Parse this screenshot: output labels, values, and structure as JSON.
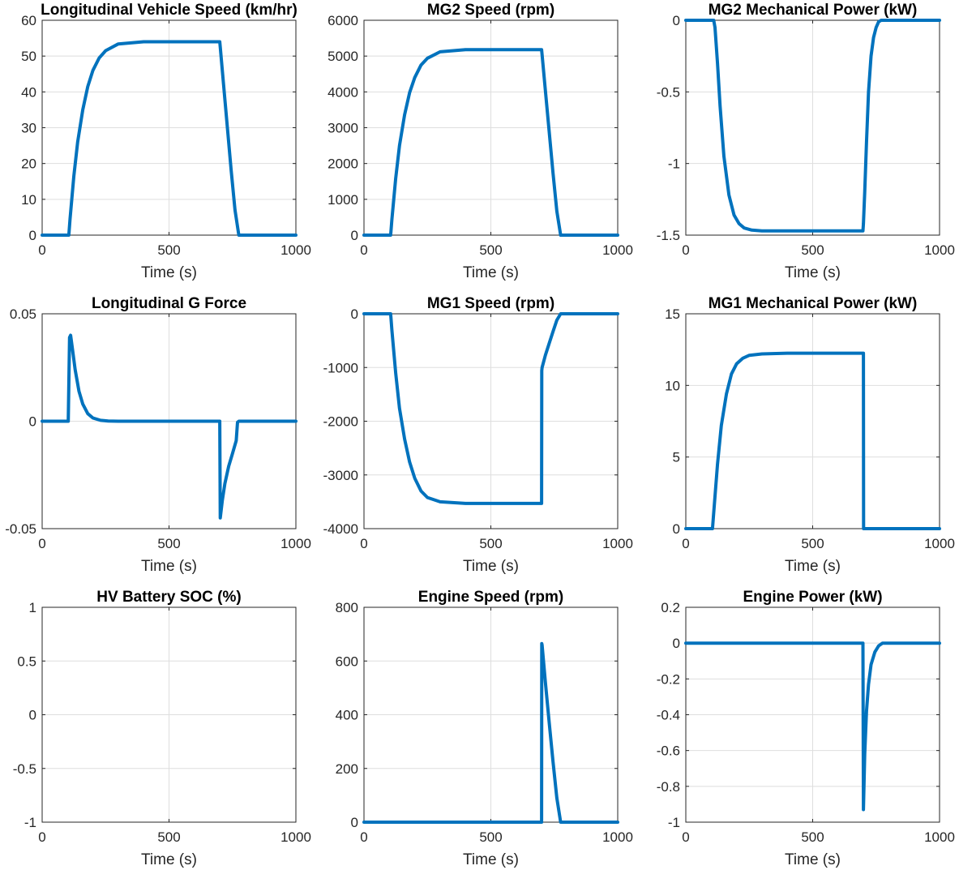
{
  "colors": {
    "series": "#0072BD",
    "grid": "#dedede",
    "axis": "#262626"
  },
  "chart_data": [
    {
      "type": "line",
      "title": "Longitudinal Vehicle Speed (km/hr)",
      "xlabel": "Time (s)",
      "ylabel": "",
      "xlim": [
        0,
        1000
      ],
      "ylim": [
        0,
        60
      ],
      "xticks": [
        0,
        500,
        1000
      ],
      "xtick_labels": [
        "0",
        "500",
        "1000"
      ],
      "yticks": [
        0,
        10,
        20,
        30,
        40,
        50,
        60
      ],
      "ytick_labels": [
        "0",
        "10",
        "20",
        "30",
        "40",
        "50",
        "60"
      ],
      "grid": true,
      "series": [
        {
          "x": [
            0,
            105,
            110,
            125,
            140,
            160,
            180,
            200,
            225,
            250,
            300,
            400,
            500,
            600,
            700,
            702,
            715,
            730,
            745,
            760,
            775,
            1000
          ],
          "y": [
            0,
            0,
            4.5,
            16.5,
            26,
            35,
            41.5,
            46,
            49.5,
            51.5,
            53.4,
            54,
            54,
            54,
            54,
            52.5,
            42,
            30,
            18,
            7,
            0,
            0
          ]
        }
      ]
    },
    {
      "type": "line",
      "title": "MG2 Speed (rpm)",
      "xlabel": "Time (s)",
      "ylabel": "",
      "xlim": [
        0,
        1000
      ],
      "ylim": [
        0,
        6000
      ],
      "xticks": [
        0,
        500,
        1000
      ],
      "xtick_labels": [
        "0",
        "500",
        "1000"
      ],
      "yticks": [
        0,
        1000,
        2000,
        3000,
        4000,
        5000,
        6000
      ],
      "ytick_labels": [
        "0",
        "1000",
        "2000",
        "3000",
        "4000",
        "5000",
        "6000"
      ],
      "grid": true,
      "series": [
        {
          "x": [
            0,
            105,
            110,
            125,
            140,
            160,
            180,
            200,
            225,
            250,
            300,
            400,
            500,
            600,
            700,
            702,
            715,
            730,
            745,
            760,
            775,
            1000
          ],
          "y": [
            0,
            0,
            430,
            1580,
            2500,
            3360,
            3980,
            4400,
            4750,
            4940,
            5120,
            5180,
            5180,
            5180,
            5180,
            5040,
            4030,
            2880,
            1730,
            670,
            0,
            0
          ]
        }
      ]
    },
    {
      "type": "line",
      "title": "MG2 Mechanical Power (kW)",
      "xlabel": "Time (s)",
      "ylabel": "",
      "xlim": [
        0,
        1000
      ],
      "ylim": [
        -1.5,
        0
      ],
      "xticks": [
        0,
        500,
        1000
      ],
      "xtick_labels": [
        "0",
        "500",
        "1000"
      ],
      "yticks": [
        -1.5,
        -1,
        -0.5,
        0
      ],
      "ytick_labels": [
        "-1.5",
        "-1",
        "-0.5",
        "0"
      ],
      "grid": true,
      "series": [
        {
          "x": [
            0,
            110,
            115,
            125,
            135,
            150,
            170,
            190,
            210,
            230,
            260,
            300,
            400,
            500,
            600,
            698,
            700,
            705,
            712,
            720,
            730,
            740,
            750,
            760,
            770,
            1000
          ],
          "y": [
            0,
            0,
            -0.05,
            -0.3,
            -0.6,
            -0.95,
            -1.22,
            -1.36,
            -1.42,
            -1.45,
            -1.465,
            -1.47,
            -1.47,
            -1.47,
            -1.47,
            -1.47,
            -1.42,
            -1.2,
            -0.85,
            -0.5,
            -0.25,
            -0.12,
            -0.05,
            -0.01,
            0,
            0
          ]
        }
      ]
    },
    {
      "type": "line",
      "title": "Longitudinal G Force",
      "xlabel": "Time (s)",
      "ylabel": "",
      "xlim": [
        0,
        1000
      ],
      "ylim": [
        -0.05,
        0.05
      ],
      "xticks": [
        0,
        500,
        1000
      ],
      "xtick_labels": [
        "0",
        "500",
        "1000"
      ],
      "yticks": [
        -0.05,
        0,
        0.05
      ],
      "ytick_labels": [
        "-0.05",
        "0",
        "0.05"
      ],
      "grid": true,
      "series": [
        {
          "x": [
            0,
            103,
            108,
            112,
            120,
            130,
            145,
            160,
            180,
            200,
            230,
            260,
            300,
            700,
            702,
            710,
            720,
            735,
            750,
            765,
            770,
            775,
            1000
          ],
          "y": [
            0,
            0,
            0.039,
            0.04,
            0.033,
            0.024,
            0.014,
            0.008,
            0.0035,
            0.0015,
            0.0004,
            0.0001,
            0,
            0,
            -0.045,
            -0.037,
            -0.029,
            -0.021,
            -0.015,
            -0.009,
            -0.0005,
            0,
            0
          ]
        }
      ]
    },
    {
      "type": "line",
      "title": "MG1 Speed (rpm)",
      "xlabel": "Time (s)",
      "ylabel": "",
      "xlim": [
        0,
        1000
      ],
      "ylim": [
        -4000,
        0
      ],
      "xticks": [
        0,
        500,
        1000
      ],
      "xtick_labels": [
        "0",
        "500",
        "1000"
      ],
      "yticks": [
        -4000,
        -3000,
        -2000,
        -1000,
        0
      ],
      "ytick_labels": [
        "-4000",
        "-3000",
        "-2000",
        "-1000",
        "0"
      ],
      "grid": true,
      "series": [
        {
          "x": [
            0,
            105,
            110,
            125,
            140,
            160,
            180,
            200,
            225,
            250,
            300,
            400,
            500,
            600,
            700,
            700.5,
            702,
            715,
            730,
            745,
            760,
            775,
            1000
          ],
          "y": [
            0,
            0,
            -300,
            -1100,
            -1760,
            -2330,
            -2760,
            -3060,
            -3300,
            -3420,
            -3500,
            -3530,
            -3530,
            -3530,
            -3530,
            -1060,
            -1000,
            -770,
            -550,
            -330,
            -120,
            0,
            0
          ]
        }
      ]
    },
    {
      "type": "line",
      "title": "MG1 Mechanical Power (kW)",
      "xlabel": "Time (s)",
      "ylabel": "",
      "xlim": [
        0,
        1000
      ],
      "ylim": [
        0,
        15
      ],
      "xticks": [
        0,
        500,
        1000
      ],
      "xtick_labels": [
        "0",
        "500",
        "1000"
      ],
      "yticks": [
        0,
        5,
        10,
        15
      ],
      "ytick_labels": [
        "0",
        "5",
        "10",
        "15"
      ],
      "grid": true,
      "series": [
        {
          "x": [
            0,
            105,
            110,
            125,
            140,
            160,
            180,
            200,
            225,
            250,
            300,
            400,
            500,
            600,
            700,
            700.5,
            1000
          ],
          "y": [
            0,
            0,
            1.1,
            4.5,
            7.2,
            9.4,
            10.8,
            11.5,
            11.9,
            12.1,
            12.2,
            12.25,
            12.25,
            12.25,
            12.25,
            0,
            0
          ]
        }
      ]
    },
    {
      "type": "line",
      "title": "HV Battery SOC (%)",
      "xlabel": "Time (s)",
      "ylabel": "",
      "xlim": [
        0,
        1000
      ],
      "ylim": [
        -1,
        1
      ],
      "xticks": [
        0,
        500,
        1000
      ],
      "xtick_labels": [
        "0",
        "500",
        "1000"
      ],
      "yticks": [
        -1,
        -0.5,
        0,
        0.5,
        1
      ],
      "ytick_labels": [
        "-1",
        "-0.5",
        "0",
        "0.5",
        "1"
      ],
      "grid": true,
      "series": []
    },
    {
      "type": "line",
      "title": "Engine Speed (rpm)",
      "xlabel": "Time (s)",
      "ylabel": "",
      "xlim": [
        0,
        1000
      ],
      "ylim": [
        0,
        800
      ],
      "xticks": [
        0,
        500,
        1000
      ],
      "xtick_labels": [
        "0",
        "500",
        "1000"
      ],
      "yticks": [
        0,
        200,
        400,
        600,
        800
      ],
      "ytick_labels": [
        "0",
        "200",
        "400",
        "600",
        "800"
      ],
      "grid": true,
      "series": [
        {
          "x": [
            0,
            700,
            700.5,
            702,
            715,
            730,
            745,
            760,
            775,
            1000
          ],
          "y": [
            0,
            0,
            665,
            660,
            520,
            370,
            225,
            90,
            0,
            0
          ]
        }
      ]
    },
    {
      "type": "line",
      "title": "Engine Power (kW)",
      "xlabel": "Time (s)",
      "ylabel": "",
      "xlim": [
        0,
        1000
      ],
      "ylim": [
        -1,
        0.2
      ],
      "xticks": [
        0,
        500,
        1000
      ],
      "xtick_labels": [
        "0",
        "500",
        "1000"
      ],
      "yticks": [
        -1,
        -0.8,
        -0.6,
        -0.4,
        -0.2,
        0,
        0.2
      ],
      "ytick_labels": [
        "-1",
        "-0.8",
        "-0.6",
        "-0.4",
        "-0.2",
        "0",
        "0.2"
      ],
      "grid": true,
      "series": [
        {
          "x": [
            0,
            698,
            700,
            705,
            712,
            720,
            730,
            745,
            760,
            775,
            1000
          ],
          "y": [
            0,
            0,
            -0.93,
            -0.62,
            -0.38,
            -0.23,
            -0.12,
            -0.05,
            -0.015,
            0,
            0
          ]
        }
      ]
    }
  ]
}
